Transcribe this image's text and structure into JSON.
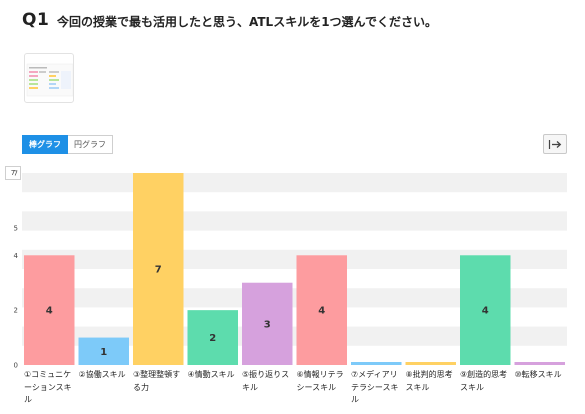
{
  "question": {
    "number": "Q1",
    "text": "今回の授業で最も活用したと思う、ATLスキルを1つ選んでください。"
  },
  "thumbnail": {
    "icon": "chart-thumbnail-icon"
  },
  "tabs": [
    {
      "label": "棒グラフ",
      "active": true
    },
    {
      "label": "円グラフ",
      "active": false
    }
  ],
  "export_button": {
    "icon": "export-arrow-icon"
  },
  "y_axis_box": "7",
  "chart_data": {
    "type": "bar",
    "categories": [
      "①コミュニケーションスキル",
      "②協働スキル",
      "③整理整頓する力",
      "④情動スキル",
      "⑤振り返りスキル",
      "⑥情報リテラシースキル",
      "⑦メディアリテラシースキル",
      "⑧批判的思考スキル",
      "⑨創造的思考スキル",
      "⑩転移スキル"
    ],
    "values": [
      4,
      1,
      7,
      2,
      3,
      4,
      0,
      0,
      4,
      0
    ],
    "data_labels": [
      "4",
      "1",
      "7",
      "2",
      "3",
      "4",
      "",
      "",
      "4",
      ""
    ],
    "colors": [
      "#fd9c9f",
      "#7dcaf9",
      "#ffd163",
      "#5ddcad",
      "#d6a1dd",
      "#fd9c9f",
      "#7dcaf9",
      "#ffd163",
      "#5ddcad",
      "#d6a1dd"
    ],
    "y_ticks": [
      "0",
      "2",
      "4",
      "5",
      "7"
    ],
    "ylim": [
      0,
      7
    ],
    "grid": true,
    "legend": "none"
  }
}
